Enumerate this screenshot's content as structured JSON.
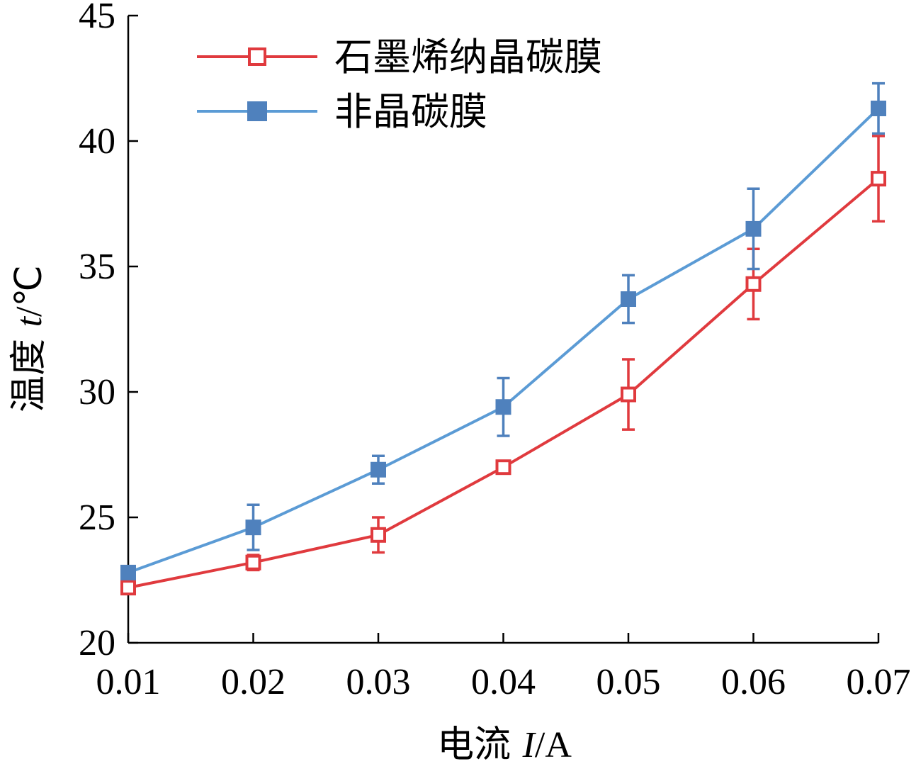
{
  "chart_data": {
    "type": "line",
    "title": "",
    "xlabel": {
      "prefix": "电流 ",
      "var": "I",
      "suffix": "/A"
    },
    "ylabel": {
      "prefix": "温度 ",
      "var": "t",
      "suffix": "/℃"
    },
    "x": [
      0.01,
      0.02,
      0.03,
      0.04,
      0.05,
      0.06,
      0.07
    ],
    "x_tick_labels": [
      "0.01",
      "0.02",
      "0.03",
      "0.04",
      "0.05",
      "0.06",
      "0.07"
    ],
    "xlim": [
      0.01,
      0.07
    ],
    "ylim": [
      20,
      45
    ],
    "y_ticks": [
      20,
      25,
      30,
      35,
      40,
      45
    ],
    "y_tick_labels": [
      "20",
      "25",
      "30",
      "35",
      "40",
      "45"
    ],
    "grid": false,
    "legend_position": "top-left",
    "series": [
      {
        "name": "石墨烯纳晶碳膜",
        "color": "#e03a3e",
        "marker": "open-square",
        "values": [
          22.2,
          23.2,
          24.3,
          27.0,
          29.9,
          34.3,
          38.5
        ],
        "errors": [
          0.2,
          0.3,
          0.7,
          0.2,
          1.4,
          1.4,
          1.7
        ]
      },
      {
        "name": "非晶碳膜",
        "color": "#5b9bd5",
        "marker_color": "#4f81bd",
        "marker": "filled-square",
        "values": [
          22.8,
          24.6,
          26.9,
          29.4,
          33.7,
          36.5,
          41.3
        ],
        "errors": [
          0.0,
          0.9,
          0.55,
          1.15,
          0.95,
          1.6,
          1.0
        ]
      }
    ]
  }
}
